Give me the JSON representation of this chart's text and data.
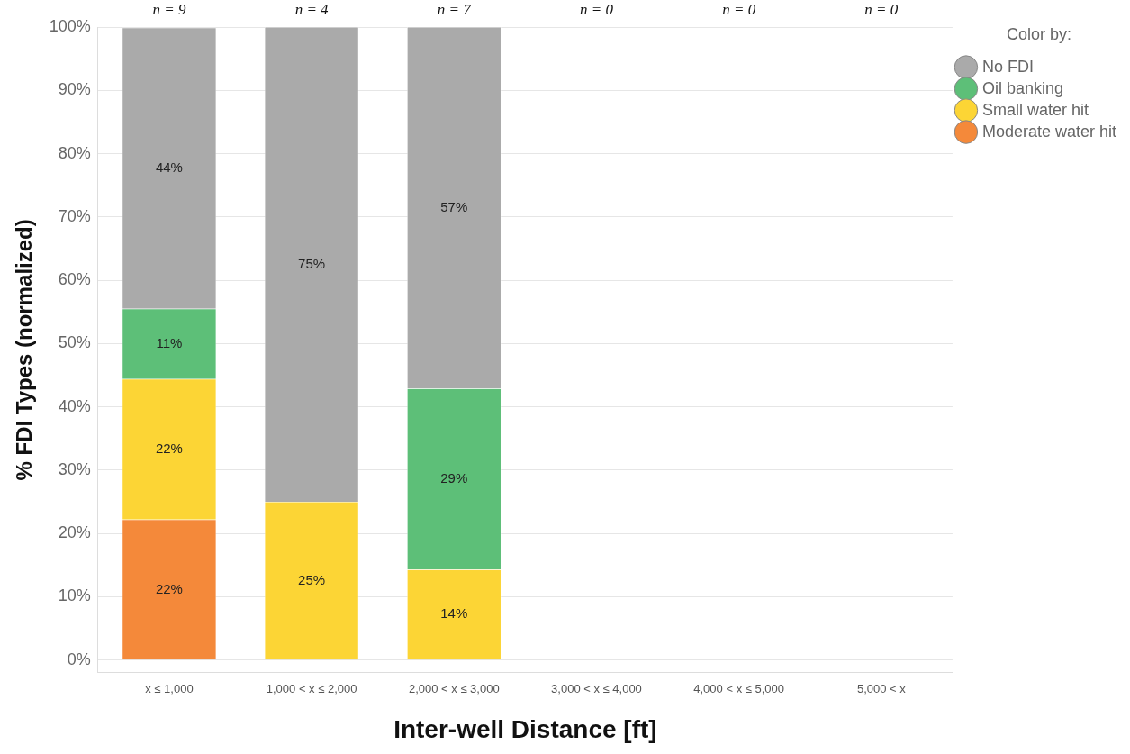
{
  "chart_data": {
    "type": "bar",
    "stacked": true,
    "xlabel": "Inter-well Distance [ft]",
    "ylabel": "% FDI Types (normalized)",
    "legend_title": "Color by:",
    "categories": [
      "x ≤ 1,000",
      "1,000 < x ≤ 2,000",
      "2,000 < x ≤ 3,000",
      "3,000 < x ≤ 4,000",
      "4,000 < x ≤ 5,000",
      "5,000 < x"
    ],
    "series": [
      {
        "name": "Moderate water hit",
        "color": "#f4893a",
        "values": [
          22.2,
          null,
          null,
          null,
          null,
          null
        ],
        "value_labels": [
          "22%",
          null,
          null,
          null,
          null,
          null
        ]
      },
      {
        "name": "Small water hit",
        "color": "#fcd535",
        "values": [
          22.2,
          25,
          14.3,
          null,
          null,
          null
        ],
        "value_labels": [
          "22%",
          "25%",
          "14%",
          null,
          null,
          null
        ]
      },
      {
        "name": "Oil banking",
        "color": "#5dbf78",
        "values": [
          11.1,
          null,
          28.6,
          null,
          null,
          null
        ],
        "value_labels": [
          "11%",
          null,
          "29%",
          null,
          null,
          null
        ]
      },
      {
        "name": "No FDI",
        "color": "#aaaaaa",
        "values": [
          44.4,
          75,
          57.1,
          null,
          null,
          null
        ],
        "value_labels": [
          "44%",
          "75%",
          "57%",
          null,
          null,
          null
        ]
      }
    ],
    "ylim": [
      -2,
      100
    ],
    "yticks": [
      {
        "value": 0,
        "label": "0%"
      },
      {
        "value": 10,
        "label": "10%"
      },
      {
        "value": 20,
        "label": "20%"
      },
      {
        "value": 30,
        "label": "30%"
      },
      {
        "value": 40,
        "label": "40%"
      },
      {
        "value": 50,
        "label": "50%"
      },
      {
        "value": 60,
        "label": "60%"
      },
      {
        "value": 70,
        "label": "70%"
      },
      {
        "value": 80,
        "label": "80%"
      },
      {
        "value": 90,
        "label": "90%"
      },
      {
        "value": 100,
        "label": "100%"
      }
    ],
    "grid": "y",
    "legend": "top right",
    "marker": "circle",
    "annotations": [
      "n = 9",
      "n = 4",
      "n = 7",
      "n = 0",
      "n = 0",
      "n = 0"
    ]
  }
}
